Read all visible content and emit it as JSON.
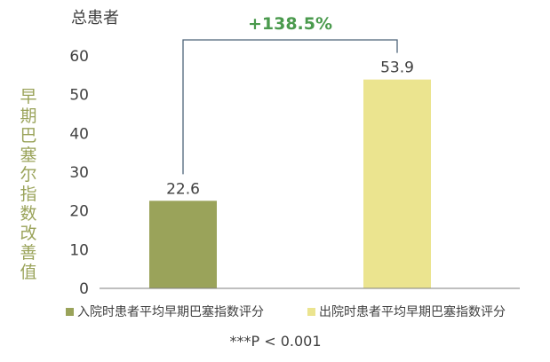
{
  "chart_data": {
    "type": "bar",
    "title": "总患者",
    "ylabel": "早期巴塞尔指数改善值",
    "ylim": [
      0,
      60
    ],
    "yticks": [
      0,
      10,
      20,
      30,
      40,
      50,
      60
    ],
    "grid": false,
    "legend_placement": "bottom",
    "categories": [
      "入院时患者平均早期巴塞指数评分",
      "出院时患者平均早期巴塞指数评分"
    ],
    "values": [
      22.6,
      53.9
    ],
    "value_labels": [
      "22.6",
      "53.9"
    ],
    "bar_colors": [
      "#9aa35a",
      "#ebe48f"
    ],
    "annotation": {
      "text": "+138.5%",
      "color": "#4a9a4d",
      "bracket_color": "#4d6379"
    },
    "footnote": "***P < 0.001",
    "colors": {
      "axis": "#7f7f7f",
      "tick_text": "#404040",
      "ylabel": "#9aa35a",
      "title": "#404040"
    }
  }
}
